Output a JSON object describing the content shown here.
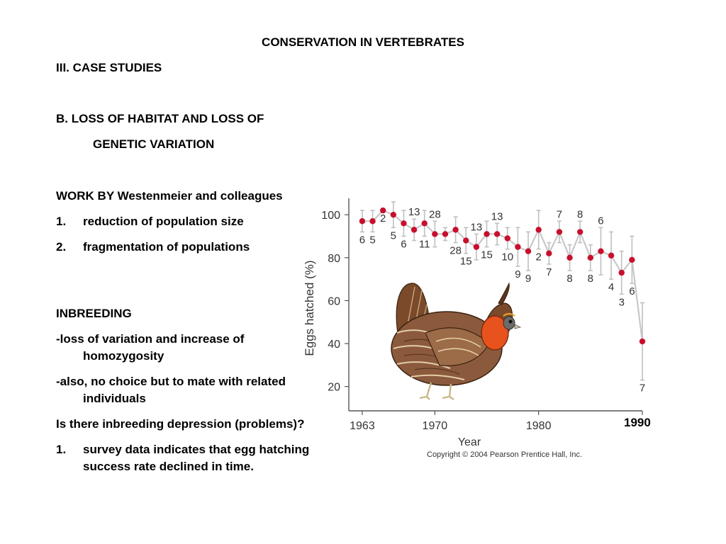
{
  "slide": {
    "title": "CONSERVATION IN VERTEBRATES",
    "section": "III. CASE STUDIES",
    "subsection_line1": "B. LOSS OF HABITAT AND LOSS OF",
    "subsection_line2": "GENETIC VARIATION",
    "work_by": "WORK BY Westenmeier and colleagues",
    "list1": [
      {
        "num": "1.",
        "text": "reduction of population size"
      },
      {
        "num": "2.",
        "text": "fragmentation of populations"
      }
    ],
    "inbreeding_heading": "INBREEDING",
    "inbreeding_point1": "-loss of variation and increase of homozygosity",
    "inbreeding_point2": "-also, no choice but to mate with related individuals",
    "question": "Is there inbreeding depression (problems)?",
    "list2": [
      {
        "num": "1.",
        "text": "survey data indicates that egg hatching success rate declined in time."
      }
    ],
    "overlay_year": "1990"
  },
  "chart_data": {
    "type": "line",
    "ylabel": "Eggs hatched (%)",
    "xlabel": "Year",
    "x_ticks": [
      "1963",
      "1970",
      "1980"
    ],
    "y_ticks": [
      "20",
      "40",
      "60",
      "80",
      "100"
    ],
    "ylim": [
      10,
      105
    ],
    "xlim": [
      1962.8,
      1990
    ],
    "copyright": "Copyright © 2004 Pearson Prentice Hall, Inc.",
    "colors": {
      "point": "#c8102e",
      "line": "#c8c8c8",
      "axis": "#555555"
    },
    "x": [
      1963,
      1964,
      1965,
      1966,
      1967,
      1968,
      1969,
      1970,
      1971,
      1972,
      1973,
      1974,
      1975,
      1976,
      1977,
      1978,
      1979,
      1980,
      1981,
      1982,
      1983,
      1984,
      1985,
      1986,
      1987,
      1988,
      1989,
      1990
    ],
    "values": [
      97,
      97,
      102,
      100,
      96,
      93,
      96,
      91,
      91,
      93,
      88,
      85,
      91,
      91,
      89,
      85,
      83,
      93,
      82,
      92,
      80,
      92,
      80,
      83,
      81,
      73,
      79,
      41
    ],
    "error": [
      5,
      5,
      0,
      6,
      6,
      5,
      6,
      6,
      3,
      6,
      6,
      6,
      6,
      5,
      5,
      9,
      9,
      9,
      5,
      5,
      6,
      5,
      6,
      11,
      11,
      10,
      11,
      18
    ],
    "sample_sizes": [
      "6",
      "5",
      "2",
      "5",
      "6",
      "13",
      "11",
      "28",
      "",
      "28",
      "15",
      "13",
      "15",
      "13",
      "10",
      "9",
      "9",
      "2",
      "7",
      "7",
      "8",
      "8",
      "8",
      "6",
      "4",
      "3",
      "6",
      "7"
    ],
    "label_pos": [
      "below",
      "below",
      "below",
      "below",
      "below",
      "above",
      "below",
      "above",
      "",
      "below",
      "below",
      "above",
      "below",
      "above",
      "below",
      "below",
      "below",
      "below",
      "below",
      "above",
      "below",
      "above",
      "below",
      "above",
      "below",
      "below",
      "below",
      "below"
    ]
  }
}
